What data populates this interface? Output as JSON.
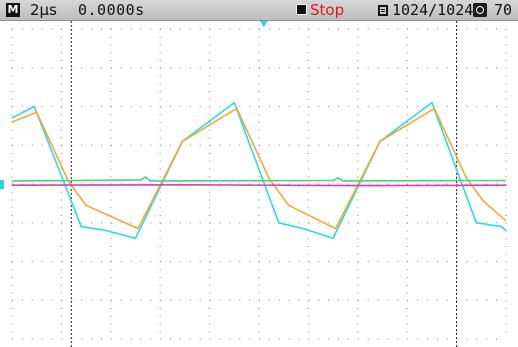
{
  "status_bar": {
    "mode_symbol": "M",
    "timebase": "2µs",
    "trigger_position": "0.0000s",
    "run_state": "Stop",
    "record_count": "1024/1024",
    "zoom_value": "70"
  },
  "colors": {
    "status_bar_bg": "#c9c9c9",
    "stop_text": "#e0181c",
    "grid_dot": "#9a9a9a",
    "cursor_line": "#222222",
    "trigger_marker": "#27d6e0",
    "channel_marker": "#27d6e0"
  },
  "icons": {
    "mode": "m-mode-icon",
    "stop": "stop-square-icon",
    "memory": "memory-icon",
    "auto": "auto-icon"
  },
  "chart_data": {
    "type": "line",
    "grid": true,
    "x_divisions": 10,
    "y_divisions": 8,
    "xlim": [
      0,
      10
    ],
    "ylim": [
      -4,
      4
    ],
    "cursors_x": [
      1.2,
      9.0
    ],
    "trigger_x": 5.1,
    "series": [
      {
        "color": "#2fd9e6",
        "points": [
          [
            0,
            1.7
          ],
          [
            0.45,
            2.0
          ],
          [
            1.05,
            0.05
          ],
          [
            1.4,
            -1.1
          ],
          [
            1.9,
            -1.2
          ],
          [
            2.5,
            -1.4
          ],
          [
            3.45,
            1.1
          ],
          [
            4.5,
            2.1
          ],
          [
            5.05,
            0.2
          ],
          [
            5.4,
            -1.0
          ],
          [
            5.9,
            -1.15
          ],
          [
            6.5,
            -1.4
          ],
          [
            7.45,
            1.1
          ],
          [
            8.5,
            2.1
          ],
          [
            9.05,
            0.2
          ],
          [
            9.4,
            -1.0
          ],
          [
            9.9,
            -1.1
          ],
          [
            10,
            -1.2
          ]
        ]
      },
      {
        "color": "#f0a838",
        "points": [
          [
            0,
            1.6
          ],
          [
            0.5,
            1.85
          ],
          [
            1.15,
            0.05
          ],
          [
            1.5,
            -0.55
          ],
          [
            2.55,
            -1.15
          ],
          [
            3.45,
            1.1
          ],
          [
            4.55,
            1.95
          ],
          [
            5.2,
            0.15
          ],
          [
            5.6,
            -0.55
          ],
          [
            6.55,
            -1.15
          ],
          [
            7.45,
            1.1
          ],
          [
            8.55,
            1.95
          ],
          [
            9.2,
            0.15
          ],
          [
            9.55,
            -0.45
          ],
          [
            10,
            -0.95
          ]
        ]
      },
      {
        "color": "#46d66a",
        "points": [
          [
            0,
            0.08
          ],
          [
            2.6,
            0.1
          ],
          [
            2.7,
            0.18
          ],
          [
            2.8,
            0.08
          ],
          [
            6.5,
            0.09
          ],
          [
            6.6,
            0.16
          ],
          [
            6.7,
            0.08
          ],
          [
            10,
            0.09
          ]
        ]
      },
      {
        "color": "#d33ad6",
        "points": [
          [
            0,
            -0.03
          ],
          [
            3.5,
            -0.02
          ],
          [
            6.9,
            -0.04
          ],
          [
            10,
            -0.03
          ]
        ]
      }
    ]
  }
}
